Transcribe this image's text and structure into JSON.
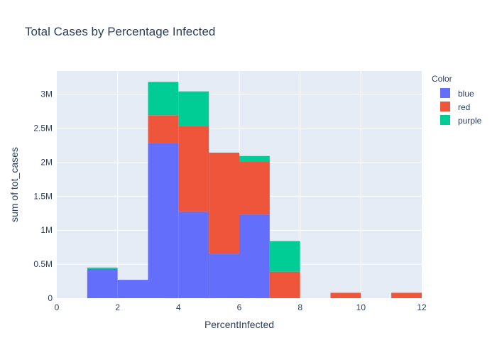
{
  "chart_data": {
    "type": "bar",
    "stacked": true,
    "title": "Total Cases by Percentage Infected",
    "xlabel": "PercentInfected",
    "ylabel": "sum of tot_cases",
    "xlim": [
      0,
      12
    ],
    "ylim": [
      0,
      3340000
    ],
    "x_ticks": [
      0,
      2,
      4,
      6,
      8,
      10,
      12
    ],
    "x_tick_labels": [
      "0",
      "2",
      "4",
      "6",
      "8",
      "10",
      "12"
    ],
    "y_ticks": [
      0,
      500000,
      1000000,
      1500000,
      2000000,
      2500000,
      3000000
    ],
    "y_tick_labels": [
      "0",
      "0.5M",
      "1M",
      "1.5M",
      "2M",
      "2.5M",
      "3M"
    ],
    "bin_width": 1,
    "bins": [
      1,
      2,
      3,
      4,
      5,
      6,
      7,
      9,
      11
    ],
    "series": [
      {
        "name": "blue",
        "color": "#636efa",
        "values": [
          430000,
          270000,
          2280000,
          1270000,
          660000,
          1230000,
          0,
          0,
          0
        ]
      },
      {
        "name": "red",
        "color": "#ef553b",
        "values": [
          0,
          0,
          410000,
          1260000,
          1480000,
          780000,
          390000,
          80000,
          80000
        ]
      },
      {
        "name": "purple",
        "color": "#00cc96",
        "values": [
          20000,
          0,
          490000,
          510000,
          0,
          80000,
          450000,
          0,
          0
        ]
      }
    ],
    "legend": {
      "title": "Color",
      "position": "right"
    },
    "grid": true,
    "plot_background": "#e5ecf6"
  }
}
